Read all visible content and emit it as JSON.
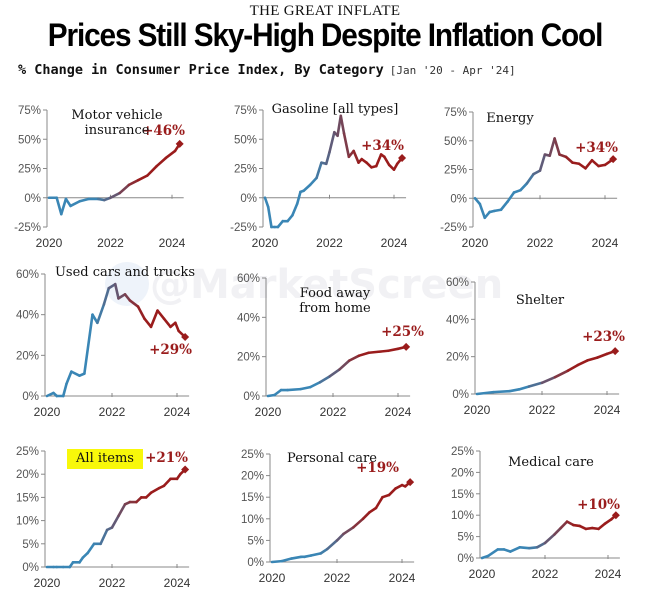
{
  "header": {
    "kicker": "THE GREAT INFLATE",
    "title": "Prices Still Sky-High Despite Inflation Cool",
    "subtitle": "% Change in Consumer Price Index, By Category",
    "date_range": "[Jan '20 - Apr '24]"
  },
  "watermark": "@MarketScreen",
  "colors": {
    "start": "#3a86b5",
    "end": "#9a1c1c",
    "axis": "#888888",
    "highlight": "#f8f80a"
  },
  "chart_data": [
    {
      "type": "line",
      "title": "Motor vehicle insurance",
      "title_lines": [
        "Motor vehicle",
        "insurance"
      ],
      "end_label": "+46%",
      "ylim": [
        -25,
        75
      ],
      "yticks": [
        75,
        50,
        25,
        0,
        -25
      ],
      "ytick_labels": [
        "75%",
        "50%",
        "25%",
        "0%",
        "-25%"
      ],
      "xticks": [
        2020,
        2022,
        2024
      ],
      "xlim": [
        2020,
        2024.25
      ],
      "x": [
        2020,
        2020.25,
        2020.4,
        2020.55,
        2020.7,
        2021,
        2021.3,
        2021.6,
        2021.8,
        2022,
        2022.3,
        2022.6,
        2022.9,
        2023.2,
        2023.5,
        2023.8,
        2024.1,
        2024.25
      ],
      "values": [
        0,
        0,
        -14,
        -1,
        -7,
        -3,
        -1,
        -1,
        -2,
        0,
        4,
        11,
        15,
        19,
        27,
        34,
        40,
        46
      ]
    },
    {
      "type": "line",
      "title": "Gasoline [all types]",
      "title_lines": [
        "Gasoline [all types]"
      ],
      "end_label": "+34%",
      "ylim": [
        -25,
        75
      ],
      "yticks": [
        75,
        50,
        25,
        0,
        -25
      ],
      "ytick_labels": [
        "75%",
        "50%",
        "25%",
        "0%",
        "-25%"
      ],
      "xticks": [
        2020,
        2022,
        2024
      ],
      "xlim": [
        2020,
        2024.25
      ],
      "x": [
        2020,
        2020.1,
        2020.2,
        2020.3,
        2020.4,
        2020.55,
        2020.7,
        2020.85,
        2021,
        2021.1,
        2021.2,
        2021.4,
        2021.6,
        2021.75,
        2021.9,
        2022,
        2022.15,
        2022.25,
        2022.35,
        2022.45,
        2022.6,
        2022.75,
        2022.9,
        2023,
        2023.15,
        2023.3,
        2023.45,
        2023.6,
        2023.7,
        2023.85,
        2024,
        2024.1,
        2024.25
      ],
      "values": [
        0,
        -8,
        -25,
        -35,
        -25,
        -20,
        -20,
        -15,
        -5,
        5,
        6,
        11,
        17,
        30,
        29,
        39,
        56,
        53,
        70,
        55,
        35,
        40,
        30,
        33,
        30,
        26,
        27,
        37,
        35,
        28,
        24,
        29,
        34
      ]
    },
    {
      "type": "line",
      "title": "Energy",
      "title_lines": [
        "Energy"
      ],
      "end_label": "+34%",
      "ylim": [
        -25,
        75
      ],
      "yticks": [
        75,
        50,
        25,
        0,
        -25
      ],
      "ytick_labels": [
        "75%",
        "50%",
        "25%",
        "0%",
        "-25%"
      ],
      "xticks": [
        2020,
        2022,
        2024
      ],
      "xlim": [
        2020,
        2024.25
      ],
      "x": [
        2020,
        2020.15,
        2020.3,
        2020.45,
        2020.6,
        2020.8,
        2021,
        2021.2,
        2021.4,
        2021.6,
        2021.8,
        2022,
        2022.15,
        2022.3,
        2022.45,
        2022.6,
        2022.8,
        2023,
        2023.2,
        2023.4,
        2023.6,
        2023.8,
        2024,
        2024.25
      ],
      "values": [
        0,
        -5,
        -17,
        -12,
        -11,
        -10,
        -3,
        5,
        7,
        13,
        21,
        24,
        38,
        37,
        52,
        38,
        36,
        31,
        30,
        26,
        33,
        28,
        29,
        34
      ]
    },
    {
      "type": "line",
      "title": "Used cars and trucks",
      "title_lines": [
        "Used cars and trucks"
      ],
      "end_label": "+29%",
      "ylim": [
        0,
        60
      ],
      "yticks": [
        60,
        40,
        20,
        0
      ],
      "ytick_labels": [
        "60%",
        "40%",
        "20%",
        "0%"
      ],
      "xticks": [
        2020,
        2022,
        2024
      ],
      "xlim": [
        2020,
        2024.25
      ],
      "x": [
        2020,
        2020.2,
        2020.3,
        2020.5,
        2020.6,
        2020.75,
        2021,
        2021.15,
        2021.4,
        2021.55,
        2021.75,
        2021.9,
        2022.1,
        2022.2,
        2022.4,
        2022.55,
        2022.8,
        2023,
        2023.2,
        2023.4,
        2023.6,
        2023.8,
        2023.95,
        2024.05,
        2024.25
      ],
      "values": [
        0,
        1.5,
        -2,
        -2,
        6,
        12,
        10,
        11,
        40,
        36,
        45,
        53,
        55,
        48,
        50,
        47,
        44,
        38,
        34,
        42,
        38,
        34,
        36,
        32,
        29
      ]
    },
    {
      "type": "line",
      "title": "Food away from home",
      "title_lines": [
        "Food away",
        "from home"
      ],
      "end_label": "+25%",
      "ylim": [
        0,
        60
      ],
      "yticks": [
        60,
        40,
        20,
        0
      ],
      "ytick_labels": [
        "60%",
        "40%",
        "20%",
        "0%"
      ],
      "xticks": [
        2020,
        2022,
        2024
      ],
      "xlim": [
        2020,
        2024.25
      ],
      "x": [
        2020,
        2020.2,
        2020.4,
        2020.6,
        2021,
        2021.3,
        2021.6,
        2021.9,
        2022.2,
        2022.5,
        2022.8,
        2023.1,
        2023.4,
        2023.7,
        2024,
        2024.25
      ],
      "values": [
        0,
        0.5,
        3,
        3,
        3.5,
        4.5,
        7,
        10,
        13.5,
        18,
        20.5,
        22,
        22.5,
        23,
        24,
        25
      ]
    },
    {
      "type": "line",
      "title": "Shelter",
      "title_lines": [
        "Shelter"
      ],
      "end_label": "+23%",
      "ylim": [
        0,
        60
      ],
      "yticks": [
        60,
        40,
        20,
        0
      ],
      "ytick_labels": [
        "60%",
        "40%",
        "20%",
        "0%"
      ],
      "xticks": [
        2020,
        2022,
        2024
      ],
      "xlim": [
        2020,
        2024.25
      ],
      "x": [
        2020,
        2020.5,
        2021,
        2021.3,
        2021.6,
        2022,
        2022.4,
        2022.8,
        2023.1,
        2023.4,
        2023.7,
        2024,
        2024.25
      ],
      "values": [
        0,
        1,
        1.5,
        2.5,
        4,
        6,
        9,
        12.5,
        15.5,
        18,
        19.5,
        21.5,
        23
      ]
    },
    {
      "type": "line",
      "title": "All items",
      "title_lines": [
        "All items"
      ],
      "highlight": true,
      "end_label": "+21%",
      "ylim": [
        0,
        25
      ],
      "yticks": [
        25,
        20,
        15,
        10,
        5,
        0
      ],
      "ytick_labels": [
        "25%",
        "20%",
        "15%",
        "10%",
        "5%",
        "0%"
      ],
      "xticks": [
        2020,
        2022,
        2024
      ],
      "xlim": [
        2020,
        2024.25
      ],
      "x": [
        2020,
        2020.2,
        2020.3,
        2020.5,
        2020.7,
        2020.8,
        2021,
        2021.1,
        2021.25,
        2021.45,
        2021.65,
        2021.85,
        2022,
        2022.2,
        2022.4,
        2022.55,
        2022.75,
        2022.9,
        2023.05,
        2023.2,
        2023.45,
        2023.6,
        2023.8,
        2024,
        2024.1,
        2024.25
      ],
      "values": [
        0,
        0,
        -0.5,
        0,
        0,
        1,
        1,
        2,
        3,
        5,
        5,
        8,
        8.5,
        11,
        13.5,
        14,
        14,
        15,
        15,
        16,
        17,
        17.5,
        19,
        19,
        20,
        21
      ]
    },
    {
      "type": "line",
      "title": "Personal care",
      "title_lines": [
        "Personal care"
      ],
      "end_label": "+19%",
      "ylim": [
        0,
        25
      ],
      "yticks": [
        25,
        20,
        15,
        10,
        5,
        0
      ],
      "ytick_labels": [
        "25%",
        "20%",
        "15%",
        "10%",
        "5%",
        "0%"
      ],
      "xticks": [
        2020,
        2022,
        2024
      ],
      "xlim": [
        2020,
        2024.25
      ],
      "x": [
        2020,
        2020.3,
        2020.6,
        2020.9,
        2021,
        2021.2,
        2021.5,
        2021.7,
        2022,
        2022.2,
        2022.5,
        2022.8,
        2023,
        2023.2,
        2023.4,
        2023.6,
        2023.8,
        2024,
        2024.1,
        2024.25
      ],
      "values": [
        0,
        0.2,
        0.8,
        1.2,
        1.2,
        1.5,
        2,
        3,
        5,
        6.5,
        8,
        10,
        11.5,
        12.5,
        15,
        15.5,
        17,
        17.8,
        17.5,
        18.5
      ]
    },
    {
      "type": "line",
      "title": "Medical care",
      "title_lines": [
        "Medical care"
      ],
      "end_label": "+10%",
      "ylim": [
        0,
        25
      ],
      "yticks": [
        25,
        20,
        15,
        10,
        5,
        0
      ],
      "ytick_labels": [
        "25%",
        "20%",
        "15%",
        "10%",
        "5%",
        "0%"
      ],
      "xticks": [
        2020,
        2022,
        2024
      ],
      "xlim": [
        2020,
        2024.25
      ],
      "x": [
        2020,
        2020.2,
        2020.5,
        2020.7,
        2020.9,
        2021.2,
        2021.5,
        2021.75,
        2022,
        2022.3,
        2022.5,
        2022.7,
        2022.9,
        2023.1,
        2023.3,
        2023.5,
        2023.7,
        2023.9,
        2024.1,
        2024.25
      ],
      "values": [
        0,
        0.5,
        2,
        2,
        1.5,
        2.5,
        2.3,
        2.5,
        3.5,
        5.5,
        7,
        8.5,
        7.7,
        7.5,
        6.8,
        7,
        6.8,
        8,
        9,
        10
      ]
    }
  ]
}
